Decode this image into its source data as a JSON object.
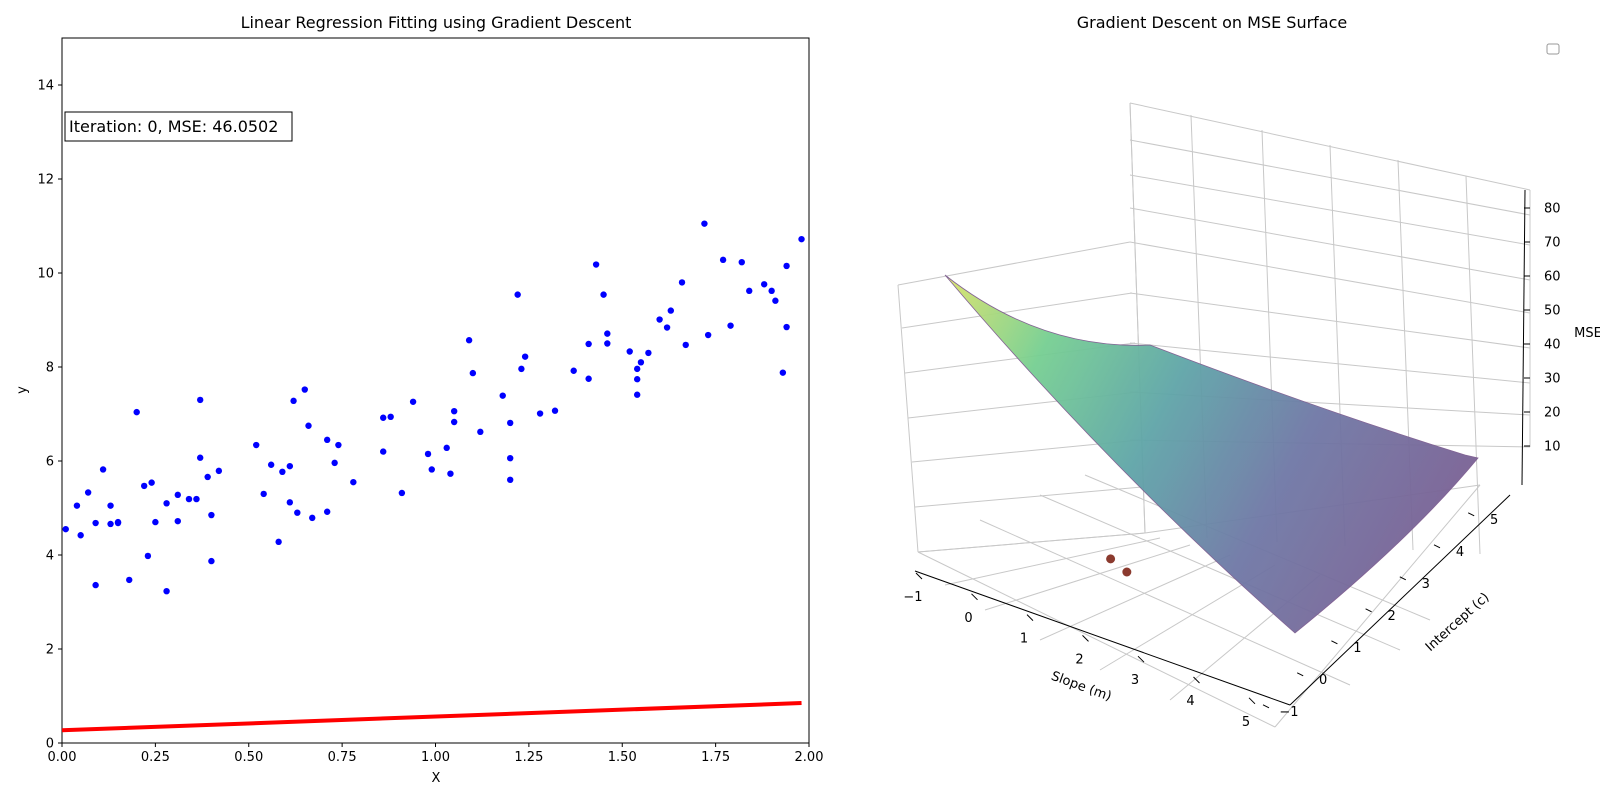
{
  "chart_data": [
    {
      "type": "scatter",
      "title": "Linear Regression Fitting using Gradient Descent",
      "xlabel": "X",
      "ylabel": "y",
      "xlim": [
        0,
        2
      ],
      "ylim": [
        0,
        15
      ],
      "xticks": [
        "0.00",
        "0.25",
        "0.50",
        "0.75",
        "1.00",
        "1.25",
        "1.50",
        "1.75",
        "2.00"
      ],
      "yticks": [
        "0",
        "2",
        "4",
        "6",
        "8",
        "10",
        "12",
        "14"
      ],
      "annotation": "Iteration: 0, MSE: 46.0502",
      "grid": false,
      "colors": {
        "points": "#0000ff",
        "fit_line": "#ff0000"
      },
      "points": [
        [
          0.01,
          4.55
        ],
        [
          0.04,
          5.05
        ],
        [
          0.05,
          4.42
        ],
        [
          0.07,
          5.33
        ],
        [
          0.09,
          4.68
        ],
        [
          0.09,
          3.36
        ],
        [
          0.11,
          5.82
        ],
        [
          0.13,
          5.05
        ],
        [
          0.13,
          4.66
        ],
        [
          0.15,
          4.7
        ],
        [
          0.15,
          4.68
        ],
        [
          0.18,
          3.47
        ],
        [
          0.2,
          7.04
        ],
        [
          0.22,
          5.47
        ],
        [
          0.23,
          3.98
        ],
        [
          0.24,
          5.54
        ],
        [
          0.25,
          4.7
        ],
        [
          0.28,
          5.1
        ],
        [
          0.28,
          3.23
        ],
        [
          0.31,
          5.28
        ],
        [
          0.31,
          4.72
        ],
        [
          0.34,
          5.19
        ],
        [
          0.36,
          5.19
        ],
        [
          0.37,
          6.07
        ],
        [
          0.37,
          7.3
        ],
        [
          0.39,
          5.66
        ],
        [
          0.4,
          4.85
        ],
        [
          0.4,
          3.87
        ],
        [
          0.42,
          5.79
        ],
        [
          0.52,
          6.34
        ],
        [
          0.54,
          5.3
        ],
        [
          0.56,
          5.92
        ],
        [
          0.58,
          4.28
        ],
        [
          0.59,
          5.77
        ],
        [
          0.61,
          5.89
        ],
        [
          0.61,
          5.12
        ],
        [
          0.62,
          7.28
        ],
        [
          0.63,
          4.9
        ],
        [
          0.65,
          7.52
        ],
        [
          0.66,
          6.75
        ],
        [
          0.67,
          4.79
        ],
        [
          0.71,
          4.92
        ],
        [
          0.71,
          6.45
        ],
        [
          0.73,
          5.96
        ],
        [
          0.74,
          6.34
        ],
        [
          0.78,
          5.55
        ],
        [
          0.86,
          6.92
        ],
        [
          0.86,
          6.2
        ],
        [
          0.88,
          6.94
        ],
        [
          0.91,
          5.32
        ],
        [
          0.94,
          7.26
        ],
        [
          0.98,
          6.15
        ],
        [
          0.99,
          5.82
        ],
        [
          1.03,
          6.28
        ],
        [
          1.04,
          5.73
        ],
        [
          1.05,
          7.06
        ],
        [
          1.05,
          6.83
        ],
        [
          1.09,
          8.57
        ],
        [
          1.1,
          7.87
        ],
        [
          1.12,
          6.62
        ],
        [
          1.18,
          7.39
        ],
        [
          1.2,
          6.06
        ],
        [
          1.2,
          5.6
        ],
        [
          1.2,
          6.81
        ],
        [
          1.22,
          9.54
        ],
        [
          1.23,
          7.96
        ],
        [
          1.24,
          8.22
        ],
        [
          1.28,
          7.01
        ],
        [
          1.32,
          7.07
        ],
        [
          1.37,
          7.92
        ],
        [
          1.41,
          8.49
        ],
        [
          1.41,
          7.75
        ],
        [
          1.43,
          10.18
        ],
        [
          1.45,
          9.54
        ],
        [
          1.46,
          8.71
        ],
        [
          1.46,
          8.5
        ],
        [
          1.52,
          8.33
        ],
        [
          1.54,
          7.74
        ],
        [
          1.54,
          7.41
        ],
        [
          1.54,
          7.96
        ],
        [
          1.55,
          8.1
        ],
        [
          1.57,
          8.3
        ],
        [
          1.6,
          9.01
        ],
        [
          1.62,
          8.84
        ],
        [
          1.63,
          9.2
        ],
        [
          1.66,
          9.8
        ],
        [
          1.67,
          8.47
        ],
        [
          1.72,
          11.05
        ],
        [
          1.73,
          8.68
        ],
        [
          1.77,
          10.28
        ],
        [
          1.79,
          8.88
        ],
        [
          1.82,
          10.23
        ],
        [
          1.84,
          9.62
        ],
        [
          1.88,
          9.76
        ],
        [
          1.9,
          9.62
        ],
        [
          1.91,
          9.41
        ],
        [
          1.93,
          7.88
        ],
        [
          1.94,
          10.15
        ],
        [
          1.94,
          8.85
        ],
        [
          1.98,
          10.72
        ]
      ],
      "fit_line": {
        "x": [
          0.0,
          1.98
        ],
        "y": [
          0.27,
          0.85
        ]
      }
    },
    {
      "type": "surface3d",
      "title": "Gradient Descent on MSE Surface",
      "xlabel": "Slope (m)",
      "ylabel": "Intercept (c)",
      "zlabel": "MSE",
      "xticks": [
        "−1",
        "0",
        "1",
        "2",
        "3",
        "4",
        "5"
      ],
      "yticks": [
        "−1",
        "0",
        "1",
        "2",
        "3",
        "4",
        "5"
      ],
      "zticks": [
        "10",
        "20",
        "30",
        "40",
        "50",
        "60",
        "70",
        "80"
      ],
      "xlim": [
        -1,
        5
      ],
      "ylim": [
        -1,
        5
      ],
      "zlim": [
        0,
        80
      ],
      "colormap": "viridis",
      "legend": "top-right (empty)",
      "path_points": [
        {
          "m": 0.3,
          "c": 0.3,
          "mse": 46.05
        },
        {
          "m": 0.5,
          "c": 0.45,
          "mse": 42.0
        }
      ],
      "path_color": "#8b3a2e"
    }
  ]
}
